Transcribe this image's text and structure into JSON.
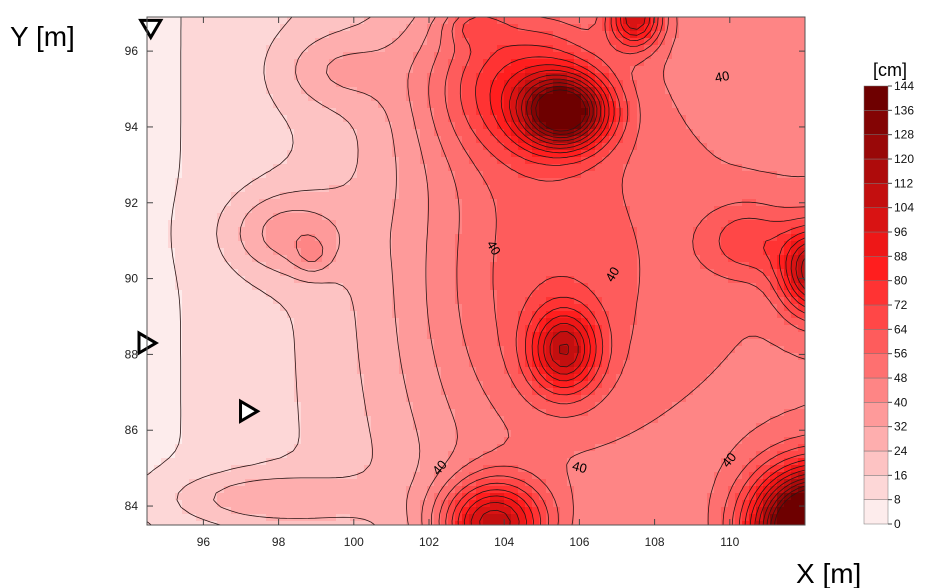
{
  "chart_data": {
    "type": "heatmap",
    "subtype": "filled-contour",
    "title": "",
    "xlabel": "X [m]",
    "ylabel": "Y [m]",
    "xlim": [
      94.5,
      112
    ],
    "ylim": [
      83.5,
      96.9
    ],
    "x_ticks": [
      96,
      98,
      100,
      102,
      104,
      106,
      108,
      110
    ],
    "y_ticks": [
      84,
      86,
      88,
      90,
      92,
      94,
      96
    ],
    "grid": false,
    "colorbar": {
      "unit": "[cm]",
      "levels": [
        0,
        8,
        16,
        24,
        32,
        40,
        48,
        56,
        64,
        72,
        80,
        88,
        96,
        104,
        112,
        120,
        128,
        136,
        144
      ],
      "color_low": "#fdecec",
      "color_mid": "#ff1a1a",
      "color_high": "#6e0000",
      "placement": "right"
    },
    "contour_labels": [
      {
        "text": "40",
        "x": 109.8,
        "y": 95.3,
        "rotation": -10
      },
      {
        "text": "40",
        "x": 103.7,
        "y": 90.8,
        "rotation": 60
      },
      {
        "text": "40",
        "x": 106.9,
        "y": 90.1,
        "rotation": -60
      },
      {
        "text": "40",
        "x": 102.3,
        "y": 85.0,
        "rotation": -50
      },
      {
        "text": "40",
        "x": 106.0,
        "y": 85.0,
        "rotation": 15
      },
      {
        "text": "40",
        "x": 110.0,
        "y": 85.2,
        "rotation": -50
      }
    ],
    "markers": [
      {
        "x": 94.6,
        "y": 96.6,
        "direction": "down"
      },
      {
        "x": 94.5,
        "y": 88.3,
        "direction": "right"
      },
      {
        "x": 97.2,
        "y": 86.5,
        "direction": "right"
      }
    ],
    "field_peaks": [
      {
        "x": 105.6,
        "y": 94.4,
        "value": 90,
        "sx": 1.1,
        "sy": 0.9
      },
      {
        "x": 104.3,
        "y": 95.2,
        "value": 40,
        "sx": 2.4,
        "sy": 2.0
      },
      {
        "x": 107.5,
        "y": 96.9,
        "value": 60,
        "sx": 0.7,
        "sy": 0.8
      },
      {
        "x": 103.2,
        "y": 96.7,
        "value": 18,
        "sx": 0.8,
        "sy": 0.5
      },
      {
        "x": 105.6,
        "y": 88.1,
        "value": 55,
        "sx": 0.9,
        "sy": 1.1
      },
      {
        "x": 103.7,
        "y": 83.5,
        "value": 75,
        "sx": 1.4,
        "sy": 1.2
      },
      {
        "x": 112.3,
        "y": 83.4,
        "value": 150,
        "sx": 1.6,
        "sy": 1.5
      },
      {
        "x": 112.3,
        "y": 90.2,
        "value": 75,
        "sx": 0.9,
        "sy": 1.1
      },
      {
        "x": 104.5,
        "y": 90.0,
        "value": 30,
        "sx": 3.5,
        "sy": 6.0
      },
      {
        "x": 108.5,
        "y": 90.5,
        "value": 8,
        "sx": 3.5,
        "sy": 6.0
      },
      {
        "x": 110.5,
        "y": 91.0,
        "value": 22,
        "sx": 1.2,
        "sy": 1.0
      },
      {
        "x": 98.2,
        "y": 91.2,
        "value": 22,
        "sx": 1.6,
        "sy": 1.1
      },
      {
        "x": 98.9,
        "y": 90.6,
        "value": 12,
        "sx": 0.5,
        "sy": 0.5
      },
      {
        "x": 97.5,
        "y": 84.2,
        "value": 18,
        "sx": 2.5,
        "sy": 0.7
      },
      {
        "x": 99.5,
        "y": 95.5,
        "value": 14,
        "sx": 1.5,
        "sy": 1.0
      }
    ],
    "field_base": 6,
    "field_ramp_x": 2.2
  }
}
